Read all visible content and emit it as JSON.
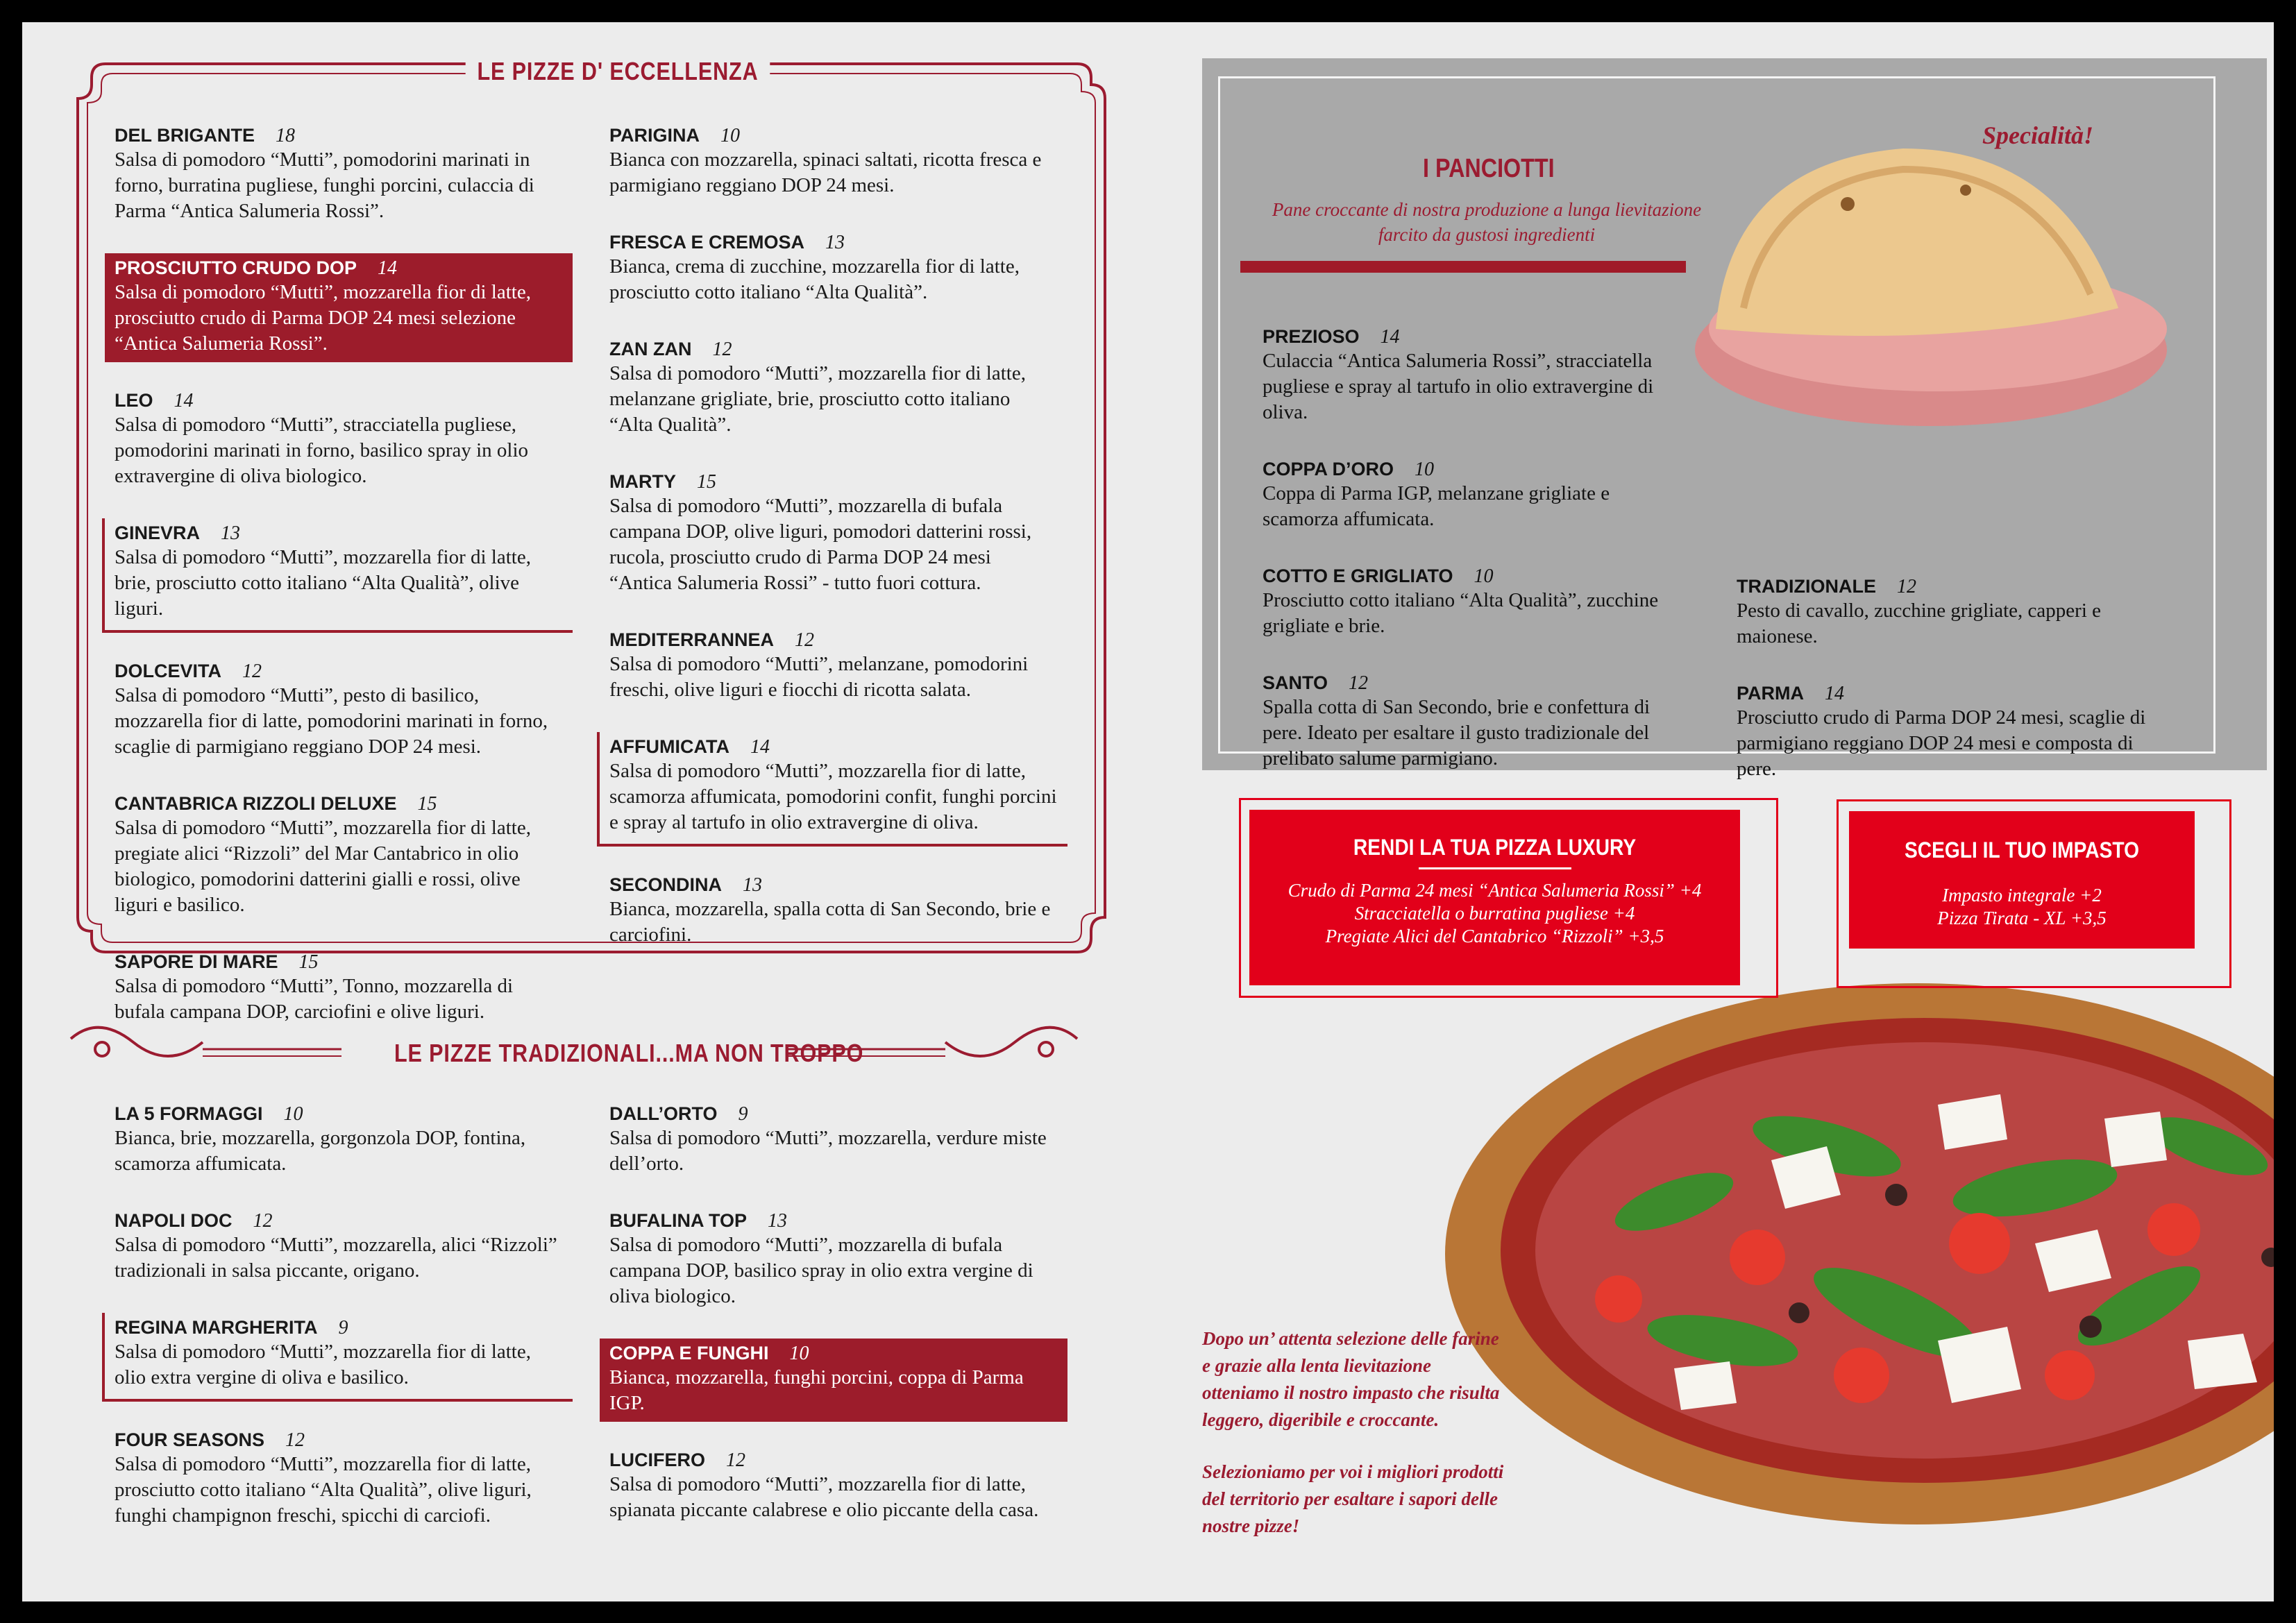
{
  "eccellenza": {
    "title": "LE PIZZE D' ECCELLENZA",
    "columns": [
      [
        {
          "name": "DEL BRIGANTE",
          "price": 18,
          "desc": "Salsa di pomodoro “Mutti”, pomodorini marinati in forno, burratina pugliese, funghi porcini, culaccia di Parma “Antica Salumeria Rossi”."
        },
        {
          "name": "PROSCIUTTO CRUDO DOP",
          "price": 14,
          "desc": "Salsa di pomodoro “Mutti”, mozzarella fior di latte, prosciutto crudo di Parma DOP 24 mesi selezione “Antica Salumeria Rossi”."
        },
        {
          "name": "LEO",
          "price": 14,
          "desc": "Salsa di pomodoro “Mutti”, stracciatella pugliese, pomodorini marinati in forno, basilico spray in olio extravergine di oliva biologico."
        },
        {
          "name": "GINEVRA",
          "price": 13,
          "desc": "Salsa di pomodoro “Mutti”, mozzarella fior di latte, brie, prosciutto cotto italiano “Alta Qualità”, olive liguri."
        },
        {
          "name": "DOLCEVITA",
          "price": 12,
          "desc": "Salsa di pomodoro “Mutti”, pesto di basilico, mozzarella fior di latte, pomodorini marinati in forno, scaglie di parmigiano reggiano DOP 24 mesi."
        },
        {
          "name": "CANTABRICA RIZZOLI DELUXE",
          "price": 15,
          "desc": "Salsa di pomodoro “Mutti”, mozzarella fior di latte, pregiate alici “Rizzoli” del Mar Cantabrico in olio biologico, pomodorini datterini gialli e rossi, olive liguri e basilico."
        },
        {
          "name": "SAPORE DI MARE",
          "price": 15,
          "desc": "Salsa di pomodoro “Mutti”, Tonno, mozzarella di bufala campana DOP, carciofini e olive liguri."
        }
      ],
      [
        {
          "name": "PARIGINA",
          "price": 10,
          "desc": "Bianca con mozzarella, spinaci saltati, ricotta fresca e parmigiano reggiano DOP 24 mesi."
        },
        {
          "name": "FRESCA E CREMOSA",
          "price": 13,
          "desc": "Bianca, crema di zucchine, mozzarella fior di latte, prosciutto cotto italiano “Alta Qualità”."
        },
        {
          "name": "ZAN ZAN",
          "price": 12,
          "desc": "Salsa di pomodoro “Mutti”, mozzarella fior di latte, melanzane grigliate, brie, prosciutto cotto italiano “Alta Qualità”."
        },
        {
          "name": "MARTY",
          "price": 15,
          "desc": "Salsa di pomodoro “Mutti”, mozzarella di bufala campana DOP, olive liguri, pomodori datterini rossi, rucola, prosciutto crudo di Parma DOP 24 mesi “Antica Salumeria Rossi” - tutto fuori cottura."
        },
        {
          "name": "MEDITERRANNEA",
          "price": 12,
          "desc": "Salsa di pomodoro “Mutti”, melanzane, pomodorini freschi, olive liguri e fiocchi di ricotta salata."
        },
        {
          "name": "AFFUMICATA",
          "price": 14,
          "desc": "Salsa di pomodoro “Mutti”, mozzarella fior di latte, scamorza affumicata, pomodorini confit, funghi porcini e spray al tartufo in olio extravergine di oliva."
        },
        {
          "name": "SECONDINA",
          "price": 13,
          "desc": "Bianca, mozzarella, spalla cotta di San Secondo, brie e carciofini."
        }
      ]
    ]
  },
  "tradizionali": {
    "title": "LE PIZZE TRADIZIONALI...MA NON TROPPO",
    "columns": [
      [
        {
          "name": "LA 5 FORMAGGI",
          "price": 10,
          "desc": "Bianca, brie, mozzarella, gorgonzola DOP, fontina, scamorza affumicata."
        },
        {
          "name": "NAPOLI DOC",
          "price": 12,
          "desc": "Salsa di pomodoro “Mutti”, mozzarella, alici “Rizzoli” tradizionali in salsa piccante, origano."
        },
        {
          "name": "REGINA MARGHERITA",
          "price": 9,
          "desc": "Salsa di pomodoro “Mutti”, mozzarella fior di latte, olio extra vergine di oliva e basilico."
        },
        {
          "name": "FOUR SEASONS",
          "price": 12,
          "desc": "Salsa di pomodoro “Mutti”, mozzarella fior di latte, prosciutto cotto italiano “Alta Qualità”, olive liguri, funghi champignon freschi, spicchi di carciofi."
        }
      ],
      [
        {
          "name": "DALL’ORTO",
          "price": 9,
          "desc": "Salsa di pomodoro “Mutti”, mozzarella, verdure miste dell’orto."
        },
        {
          "name": "BUFALINA TOP",
          "price": 13,
          "desc": "Salsa di pomodoro “Mutti”, mozzarella di bufala campana DOP, basilico spray in olio extra vergine di oliva biologico."
        },
        {
          "name": "COPPA E FUNGHI",
          "price": 10,
          "desc": "Bianca, mozzarella, funghi porcini, coppa di Parma IGP."
        },
        {
          "name": "LUCIFERO",
          "price": 12,
          "desc": "Salsa di pomodoro “Mutti”, mozzarella fior di latte, spianata piccante calabrese e olio piccante della casa."
        }
      ]
    ]
  },
  "panciotti": {
    "tag": "Specialità!",
    "title": "I PANCIOTTI",
    "subtitle": "Pane croccante di nostra produzione a lunga lievitazione farcito da gustosi ingredienti",
    "columns": [
      [
        {
          "name": "PREZIOSO",
          "price": 14,
          "desc": "Culaccia “Antica Salumeria Rossi”,  stracciatella pugliese e spray al tartufo in olio extravergine di oliva."
        },
        {
          "name": "COPPA D’ORO",
          "price": 10,
          "desc": "Coppa di Parma IGP, melanzane grigliate e scamorza affumicata."
        },
        {
          "name": "COTTO E GRIGLIATO",
          "price": 10,
          "desc": "Prosciutto cotto italiano “Alta Qualità”, zucchine grigliate e brie."
        },
        {
          "name": "SANTO",
          "price": 12,
          "desc": "Spalla cotta di San Secondo, brie e confettura di pere. Ideato per esaltare il gusto tradizionale del prelibato salume parmigiano."
        }
      ],
      [
        {
          "name": "TRADIZIONALE",
          "price": 12,
          "desc": "Pesto di cavallo, zucchine grigliate, capperi e maionese."
        },
        {
          "name": "PARMA",
          "price": 14,
          "desc": "Prosciutto crudo di Parma DOP 24 mesi,  scaglie di parmigiano reggiano DOP 24 mesi e composta di pere."
        }
      ]
    ]
  },
  "luxury": {
    "title": "RENDI LA TUA PIZZA LUXURY",
    "lines": [
      "Crudo di Parma 24 mesi “Antica Salumeria Rossi” +4",
      "Stracciatella o burratina pugliese +4",
      "Pregiate Alici del Cantabrico “Rizzoli” +3,5"
    ]
  },
  "impasto": {
    "title": "SCEGLI IL TUO IMPASTO",
    "lines": [
      "Impasto integrale +2",
      "Pizza Tirata - XL +3,5"
    ]
  },
  "note": {
    "paragraphs": [
      "Dopo un’ attenta selezione delle farine e grazie alla lenta lievitazione otteniamo il nostro impasto che risulta leggero, digeribile e croccante.",
      "Selezioniamo  per voi i migliori prodotti del territorio per esaltare i sapori delle nostre pizze!"
    ]
  }
}
